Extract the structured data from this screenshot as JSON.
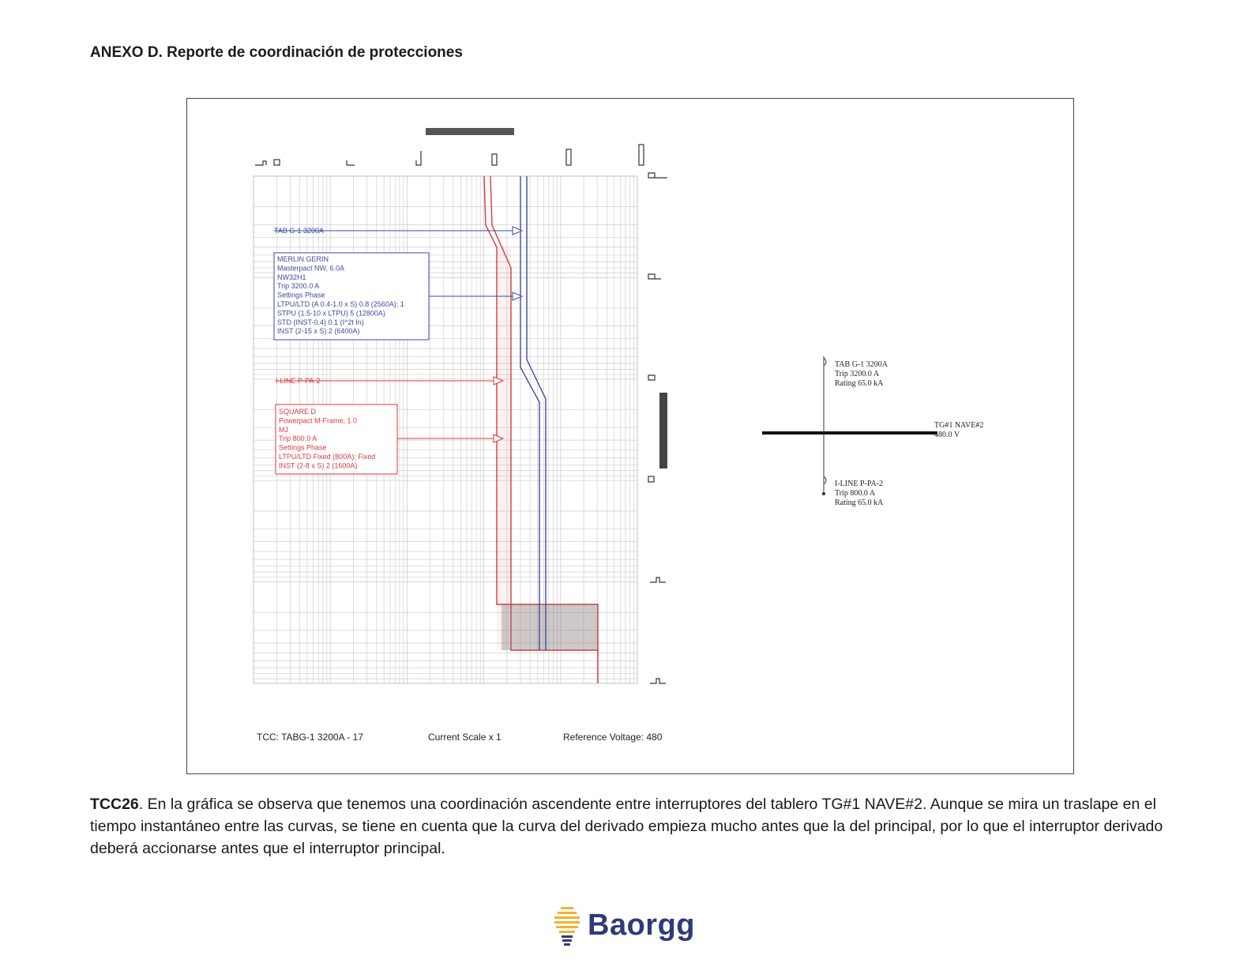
{
  "page": {
    "heading": "ANEXO D. Reporte de coordinación de protecciones"
  },
  "tcc": {
    "labels": {
      "main_breaker_tag": "TAB G-1 3200A",
      "branch_breaker_tag": "I-LINE P-PA-2"
    },
    "main_breaker_box": [
      "MERLIN GERIN",
      "Masterpact NW, 6.0A",
      "NW32H1",
      "Trip 3200.0 A",
      "Settings Phase",
      "  LTPU/LTD (A 0.4-1.0 x S) 0.8 (2560A); 1",
      "  STPU (1.5-10 x LTPU) 5 (12800A)",
      "  STD (INST-0.4) 0.1 (I^2t In)",
      "  INST (2-15 x S) 2 (6400A)"
    ],
    "branch_breaker_box": [
      "SQUARE D",
      "Powerpact M-Frame, 1.0",
      "MJ",
      "Trip 800.0 A",
      "Settings Phase",
      "  LTPU/LTD Fixed (800A); Fixed",
      "  INST (2-8 x S) 2 (1600A)"
    ],
    "footer": {
      "tcc_name": "TCC:  TABG-1 3200A - 17",
      "current_scale": "Current Scale  x 1",
      "reference_voltage": "Reference Voltage: 480"
    },
    "colors": {
      "main_curve": "#3a4a9c",
      "branch_curve": "#d93a3a",
      "grid": "#cfcfcf"
    }
  },
  "one_line": {
    "main": [
      "TAB G-1 3200A",
      "Trip 3200.0 A",
      "Rating 65.0 kA"
    ],
    "bus": [
      "TG#1 NAVE#2",
      "480.0 V"
    ],
    "branch": [
      "I-LINE P-PA-2",
      "Trip 800.0 A",
      "Rating 65.0 kA"
    ]
  },
  "caption": {
    "lead": "TCC26",
    "text": ". En la gráfica se observa que tenemos una coordinación ascendente entre interruptores del tablero TG#1 NAVE#2. Aunque se mira un traslape en el tiempo instantáneo entre las curvas, se tiene en cuenta que la curva del derivado empieza mucho antes que la del principal, por lo que el interruptor derivado deberá accionarse antes que el interruptor principal."
  },
  "logo": {
    "text": "Baorgg",
    "icon": "lightbulb-icon",
    "colors": {
      "text": "#2f3a78",
      "bulb": "#f2b233"
    }
  }
}
